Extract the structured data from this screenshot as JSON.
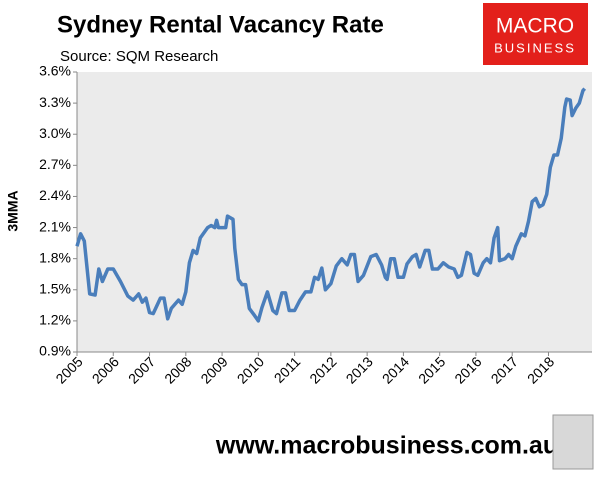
{
  "chart_data": {
    "type": "line",
    "title": "Sydney Rental Vacancy Rate",
    "subtitle": "Source: SQM Research",
    "y_label": "3MMA",
    "x": [
      2005.0,
      2005.1,
      2005.2,
      2005.35,
      2005.5,
      2005.6,
      2005.7,
      2005.85,
      2006.0,
      2006.2,
      2006.4,
      2006.55,
      2006.7,
      2006.8,
      2006.9,
      2007.0,
      2007.1,
      2007.3,
      2007.4,
      2007.5,
      2007.6,
      2007.8,
      2007.9,
      2008.0,
      2008.1,
      2008.2,
      2008.3,
      2008.4,
      2008.6,
      2008.7,
      2008.8,
      2008.85,
      2008.9,
      2009.1,
      2009.15,
      2009.3,
      2009.35,
      2009.45,
      2009.55,
      2009.65,
      2009.75,
      2009.9,
      2010.0,
      2010.1,
      2010.25,
      2010.4,
      2010.5,
      2010.65,
      2010.75,
      2010.85,
      2011.0,
      2011.15,
      2011.3,
      2011.45,
      2011.55,
      2011.65,
      2011.75,
      2011.85,
      2012.0,
      2012.15,
      2012.3,
      2012.45,
      2012.55,
      2012.65,
      2012.75,
      2012.9,
      2013.1,
      2013.25,
      2013.4,
      2013.5,
      2013.55,
      2013.65,
      2013.75,
      2013.85,
      2014.0,
      2014.1,
      2014.25,
      2014.35,
      2014.45,
      2014.6,
      2014.7,
      2014.8,
      2014.95,
      2015.1,
      2015.25,
      2015.4,
      2015.5,
      2015.6,
      2015.75,
      2015.85,
      2015.95,
      2016.05,
      2016.2,
      2016.3,
      2016.4,
      2016.5,
      2016.6,
      2016.65,
      2016.8,
      2016.9,
      2017.0,
      2017.1,
      2017.25,
      2017.35,
      2017.45,
      2017.55,
      2017.65,
      2017.75,
      2017.85,
      2017.95,
      2018.05,
      2018.15,
      2018.25,
      2018.35,
      2018.45,
      2018.5,
      2018.6,
      2018.65,
      2018.75,
      2018.85,
      2018.95,
      2019.0
    ],
    "series": [
      {
        "name": "3MMA",
        "color": "#4a7ebb",
        "values": [
          1.92,
          2.04,
          1.97,
          1.46,
          1.45,
          1.7,
          1.58,
          1.7,
          1.7,
          1.58,
          1.44,
          1.4,
          1.46,
          1.38,
          1.42,
          1.28,
          1.27,
          1.42,
          1.42,
          1.22,
          1.32,
          1.4,
          1.36,
          1.48,
          1.76,
          1.88,
          1.85,
          2.0,
          2.1,
          2.12,
          2.1,
          2.17,
          2.1,
          2.1,
          2.21,
          2.18,
          1.9,
          1.6,
          1.55,
          1.55,
          1.32,
          1.25,
          1.2,
          1.33,
          1.48,
          1.3,
          1.27,
          1.47,
          1.47,
          1.3,
          1.3,
          1.4,
          1.48,
          1.48,
          1.62,
          1.6,
          1.71,
          1.5,
          1.56,
          1.73,
          1.8,
          1.74,
          1.84,
          1.84,
          1.58,
          1.64,
          1.82,
          1.84,
          1.74,
          1.62,
          1.6,
          1.8,
          1.8,
          1.62,
          1.62,
          1.75,
          1.82,
          1.84,
          1.72,
          1.88,
          1.88,
          1.7,
          1.7,
          1.76,
          1.72,
          1.7,
          1.62,
          1.64,
          1.86,
          1.84,
          1.66,
          1.64,
          1.76,
          1.8,
          1.76,
          2.0,
          2.1,
          1.78,
          1.8,
          1.84,
          1.8,
          1.92,
          2.04,
          2.02,
          2.16,
          2.35,
          2.38,
          2.3,
          2.32,
          2.42,
          2.68,
          2.8,
          2.8,
          2.96,
          3.26,
          3.34,
          3.33,
          3.18,
          3.25,
          3.3,
          3.42,
          3.44
        ]
      }
    ],
    "xlim": [
      2005,
      2019.2
    ],
    "xticks": [
      2005,
      2006,
      2007,
      2008,
      2009,
      2010,
      2011,
      2012,
      2013,
      2014,
      2015,
      2016,
      2017,
      2018
    ],
    "ylim": [
      0.9,
      3.6
    ],
    "yticks": [
      {
        "value": 0.9,
        "label": "0.9%"
      },
      {
        "value": 1.2,
        "label": "1.2%"
      },
      {
        "value": 1.5,
        "label": "1.5%"
      },
      {
        "value": 1.8,
        "label": "1.8%"
      },
      {
        "value": 2.1,
        "label": "2.1%"
      },
      {
        "value": 2.4,
        "label": "2.4%"
      },
      {
        "value": 2.7,
        "label": "2.7%"
      },
      {
        "value": 3.0,
        "label": "3.0%"
      },
      {
        "value": 3.3,
        "label": "3.3%"
      },
      {
        "value": 3.6,
        "label": "3.6%"
      }
    ],
    "grid": false
  },
  "logo": {
    "line1": "MACRO",
    "line2": "BUSINESS"
  },
  "footer": "www.macrobusiness.com.au"
}
